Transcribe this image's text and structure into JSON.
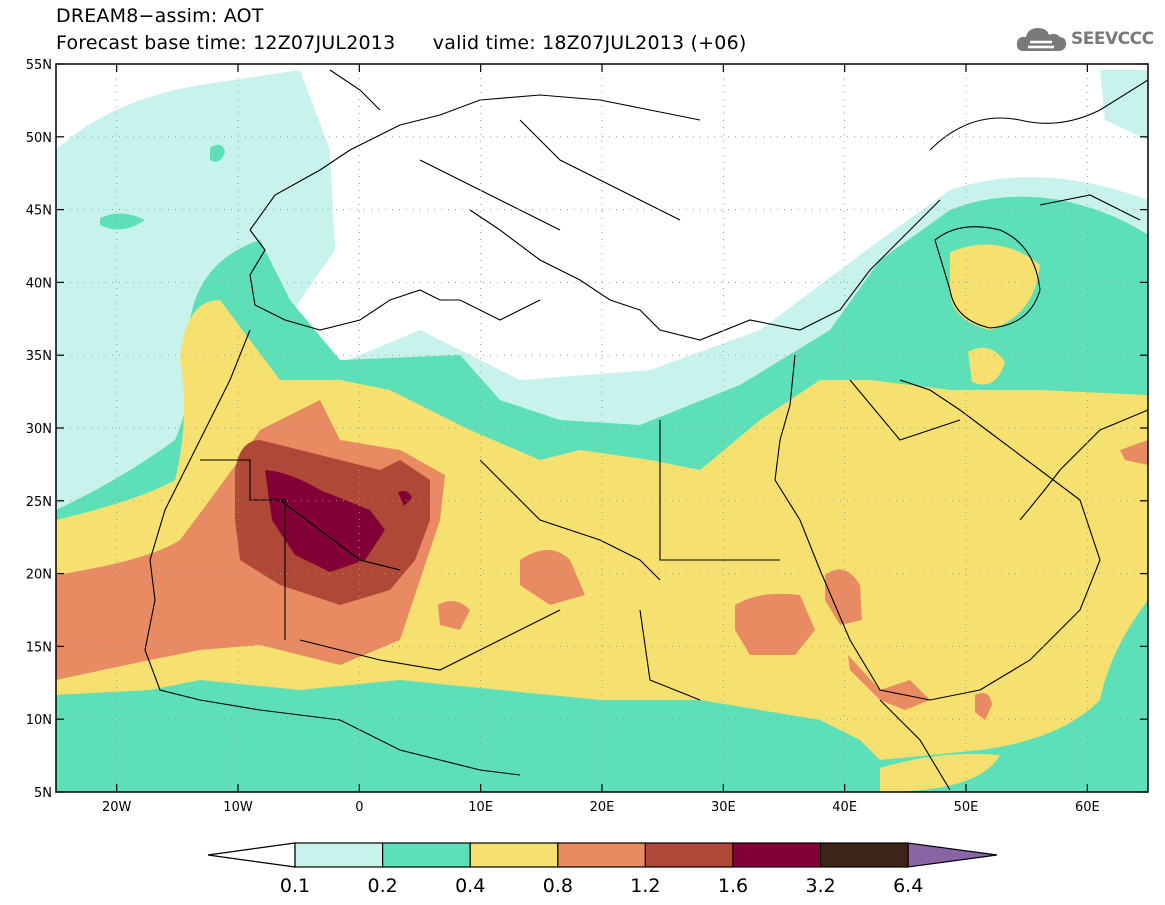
{
  "header": {
    "title_line1": "DREAM8−assim: AOT",
    "title_line2": "Forecast base time: 12Z07JUL2013      valid time: 18Z07JUL2013 (+06)",
    "logo_text": "SEEVCCC"
  },
  "map": {
    "lon_range": [
      -25,
      65
    ],
    "lat_range": [
      5,
      55
    ],
    "lon_ticks": [
      {
        "lon": -20,
        "label": "20W"
      },
      {
        "lon": -10,
        "label": "10W"
      },
      {
        "lon": 0,
        "label": "0"
      },
      {
        "lon": 10,
        "label": "10E"
      },
      {
        "lon": 20,
        "label": "20E"
      },
      {
        "lon": 30,
        "label": "30E"
      },
      {
        "lon": 40,
        "label": "40E"
      },
      {
        "lon": 50,
        "label": "50E"
      },
      {
        "lon": 60,
        "label": "60E"
      }
    ],
    "lat_ticks": [
      {
        "lat": 5,
        "label": "5N"
      },
      {
        "lat": 10,
        "label": "10N"
      },
      {
        "lat": 15,
        "label": "15N"
      },
      {
        "lat": 20,
        "label": "20N"
      },
      {
        "lat": 25,
        "label": "25N"
      },
      {
        "lat": 30,
        "label": "30N"
      },
      {
        "lat": 35,
        "label": "35N"
      },
      {
        "lat": 40,
        "label": "40N"
      },
      {
        "lat": 45,
        "label": "45N"
      },
      {
        "lat": 50,
        "label": "50N"
      },
      {
        "lat": 55,
        "label": "55N"
      }
    ],
    "grid": true
  },
  "colorbar": {
    "levels": [
      "0.1",
      "0.2",
      "0.4",
      "0.8",
      "1.2",
      "1.6",
      "3.2",
      "6.4"
    ],
    "colors": [
      "#ffffff",
      "#c8f2ec",
      "#5ddfb7",
      "#f6e070",
      "#e88a62",
      "#b04838",
      "#820036",
      "#3d2416",
      "#8a64a6"
    ]
  },
  "fill_colors": {
    "c1": "#c8f2ec",
    "c2": "#5ddfb7",
    "c3": "#f6e070",
    "c4": "#e88a62",
    "c5": "#b04838",
    "c6": "#820036"
  }
}
